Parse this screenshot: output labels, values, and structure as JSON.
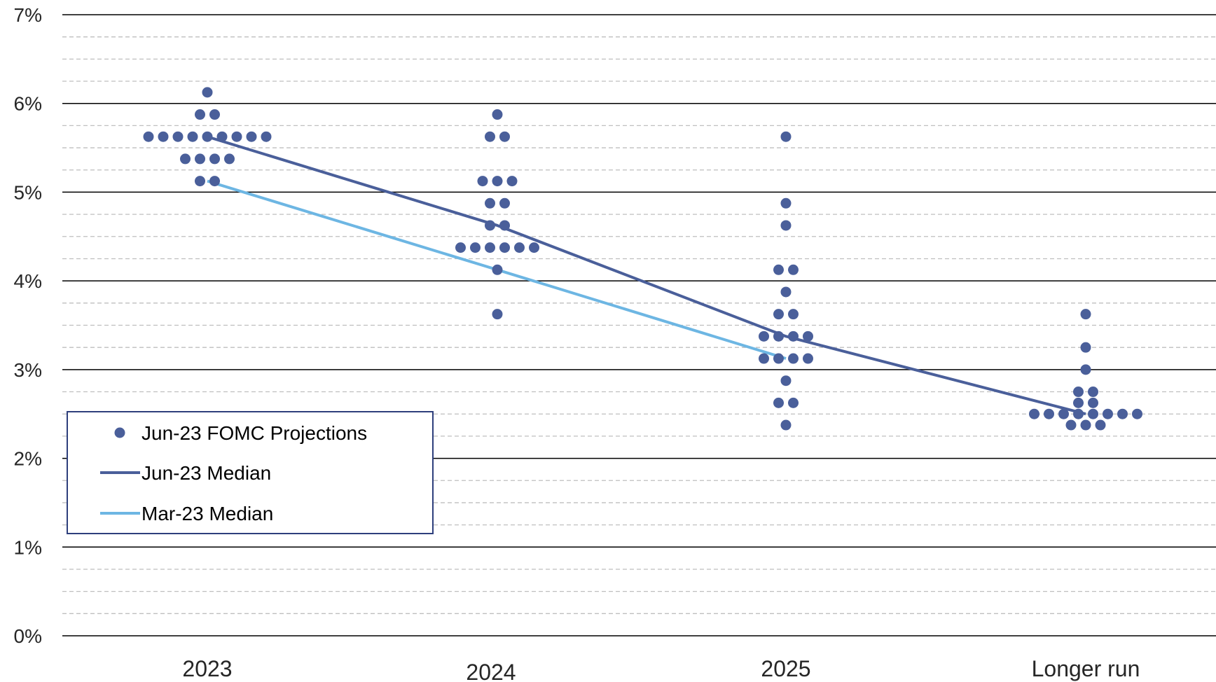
{
  "chart_data": {
    "type": "scatter",
    "title": "",
    "xlabel": "",
    "ylabel": "",
    "categories": [
      "2023",
      "2024",
      "2025",
      "Longer run"
    ],
    "ylim": [
      0,
      7
    ],
    "y_ticks": [
      "0%",
      "1%",
      "2%",
      "3%",
      "4%",
      "5%",
      "6%",
      "7%"
    ],
    "y_tick_values": [
      0,
      1,
      2,
      3,
      4,
      5,
      6,
      7
    ],
    "grid": {
      "major": true,
      "minor_dashed": true,
      "minor_step": 0.25
    },
    "colors": {
      "dots": "#4a5f9a",
      "jun_median": "#4a5f9a",
      "mar_median": "#6db6e3",
      "major_grid": "#000000",
      "minor_grid": "#bfbfbf",
      "legend_border": "#2e3f7c"
    },
    "legend": {
      "position": "bottom-left",
      "entries": [
        "Jun-23 FOMC Projections",
        "Jun-23 Median",
        "Mar-23 Median"
      ]
    },
    "dots": [
      {
        "category": "2023",
        "rates": [
          {
            "value": 6.125,
            "count": 1
          },
          {
            "value": 5.875,
            "count": 2
          },
          {
            "value": 5.625,
            "count": 9
          },
          {
            "value": 5.375,
            "count": 4
          },
          {
            "value": 5.125,
            "count": 2
          }
        ]
      },
      {
        "category": "2024",
        "rates": [
          {
            "value": 5.875,
            "count": 1
          },
          {
            "value": 5.625,
            "count": 2
          },
          {
            "value": 5.125,
            "count": 3
          },
          {
            "value": 4.875,
            "count": 2
          },
          {
            "value": 4.625,
            "count": 2
          },
          {
            "value": 4.375,
            "count": 6
          },
          {
            "value": 4.125,
            "count": 1
          },
          {
            "value": 3.625,
            "count": 1
          }
        ]
      },
      {
        "category": "2025",
        "rates": [
          {
            "value": 5.625,
            "count": 1
          },
          {
            "value": 4.875,
            "count": 1
          },
          {
            "value": 4.625,
            "count": 1
          },
          {
            "value": 4.125,
            "count": 2
          },
          {
            "value": 3.875,
            "count": 1
          },
          {
            "value": 3.625,
            "count": 2
          },
          {
            "value": 3.375,
            "count": 4
          },
          {
            "value": 3.125,
            "count": 4
          },
          {
            "value": 2.875,
            "count": 1
          },
          {
            "value": 2.625,
            "count": 2
          },
          {
            "value": 2.375,
            "count": 1
          }
        ]
      },
      {
        "category": "Longer run",
        "rates": [
          {
            "value": 3.625,
            "count": 1
          },
          {
            "value": 3.25,
            "count": 1
          },
          {
            "value": 3.0,
            "count": 1
          },
          {
            "value": 2.75,
            "count": 2
          },
          {
            "value": 2.625,
            "count": 2
          },
          {
            "value": 2.5,
            "count": 8
          },
          {
            "value": 2.375,
            "count": 3
          }
        ]
      }
    ],
    "series": [
      {
        "name": "Jun-23 Median",
        "categories": [
          "2023",
          "2024",
          "2025",
          "Longer run"
        ],
        "values": [
          5.625,
          4.625,
          3.375,
          2.5
        ]
      },
      {
        "name": "Mar-23 Median",
        "categories": [
          "2023",
          "2024",
          "2025"
        ],
        "values": [
          5.125,
          4.125,
          3.125
        ]
      }
    ]
  }
}
